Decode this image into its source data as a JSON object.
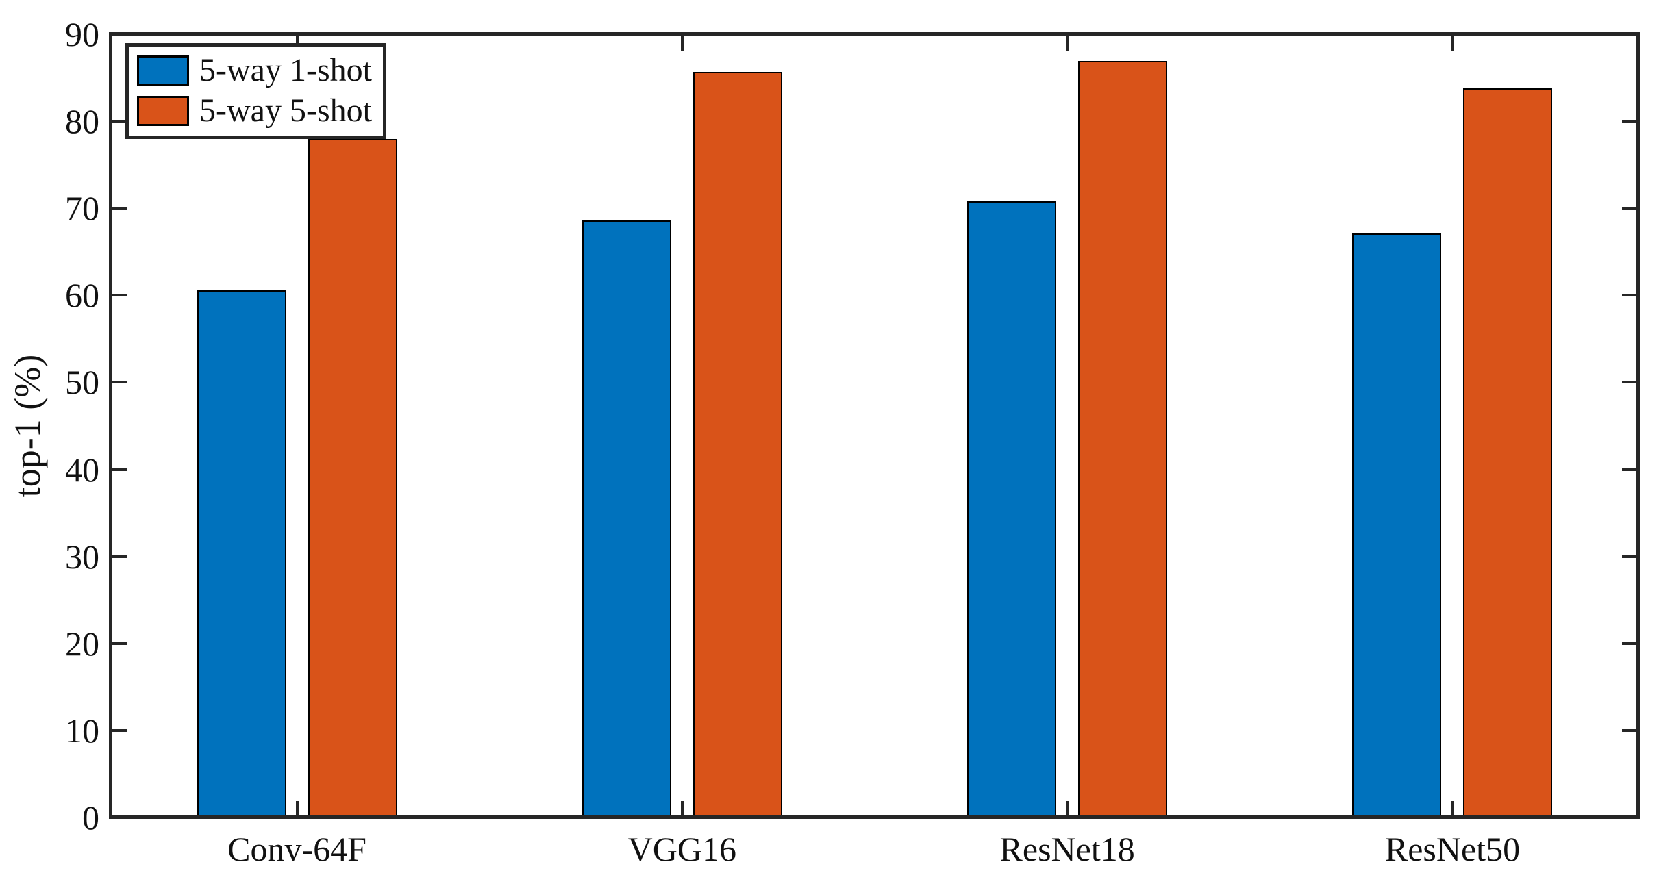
{
  "figure": {
    "background_color": "#ffffff",
    "axis_color": "#262626",
    "text_color": "#111111"
  },
  "chart_data": {
    "type": "bar",
    "title": "",
    "xlabel": "",
    "ylabel": "top-1 (%)",
    "categories": [
      "Conv-64F",
      "VGG16",
      "ResNet18",
      "ResNet50"
    ],
    "series": [
      {
        "name": "5-way 1-shot",
        "color": "#0072BD",
        "values": [
          60.6,
          68.6,
          70.8,
          67.1
        ]
      },
      {
        "name": "5-way 5-shot",
        "color": "#D95319",
        "values": [
          78.0,
          85.7,
          86.9,
          83.8
        ]
      }
    ],
    "ylim": [
      0,
      90
    ],
    "yticks": [
      0,
      10,
      20,
      30,
      40,
      50,
      60,
      70,
      80,
      90
    ],
    "bar_edge_color": "#000000",
    "grid": false,
    "legend_position": "top-left",
    "tick_direction": "in",
    "box": true
  }
}
